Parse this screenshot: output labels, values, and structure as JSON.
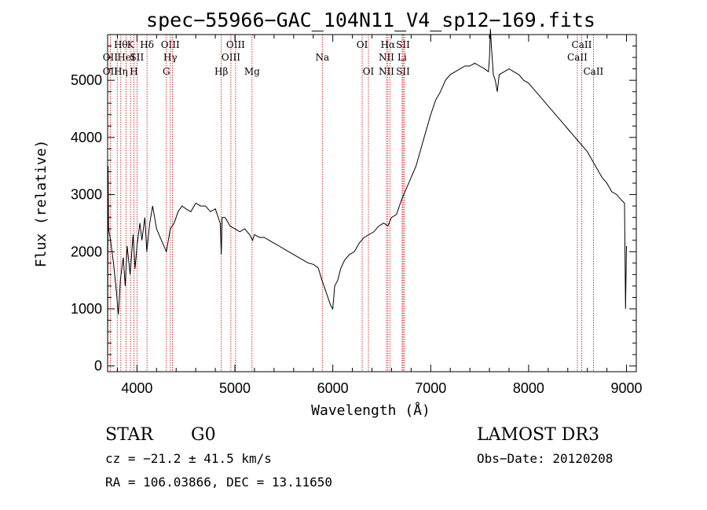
{
  "chart_data": {
    "type": "line",
    "title": "spec−55966−GAC_104N11_V4_sp12−169.fits",
    "xlabel": "Wavelength (Å)",
    "ylabel": "Flux (relative)",
    "xlim": [
      3700,
      9100
    ],
    "ylim": [
      -100,
      5800
    ],
    "xticks": [
      4000,
      5000,
      6000,
      7000,
      8000,
      9000
    ],
    "yticks": [
      0,
      1000,
      2000,
      3000,
      4000,
      5000
    ],
    "spectrum": [
      [
        3700,
        0
      ],
      [
        3705,
        3500
      ],
      [
        3710,
        2400
      ],
      [
        3730,
        2200
      ],
      [
        3760,
        1800
      ],
      [
        3790,
        1300
      ],
      [
        3810,
        900
      ],
      [
        3830,
        1500
      ],
      [
        3860,
        1900
      ],
      [
        3880,
        1400
      ],
      [
        3900,
        2100
      ],
      [
        3930,
        1600
      ],
      [
        3960,
        2300
      ],
      [
        3980,
        1700
      ],
      [
        4000,
        2100
      ],
      [
        4030,
        2500
      ],
      [
        4050,
        2200
      ],
      [
        4080,
        2600
      ],
      [
        4100,
        2000
      ],
      [
        4130,
        2500
      ],
      [
        4160,
        2800
      ],
      [
        4200,
        2400
      ],
      [
        4250,
        2200
      ],
      [
        4300,
        2000
      ],
      [
        4340,
        2400
      ],
      [
        4380,
        2500
      ],
      [
        4420,
        2700
      ],
      [
        4460,
        2800
      ],
      [
        4500,
        2750
      ],
      [
        4550,
        2700
      ],
      [
        4600,
        2850
      ],
      [
        4650,
        2800
      ],
      [
        4700,
        2800
      ],
      [
        4750,
        2700
      ],
      [
        4800,
        2750
      ],
      [
        4850,
        2500
      ],
      [
        4861,
        1950
      ],
      [
        4870,
        2600
      ],
      [
        4900,
        2600
      ],
      [
        4950,
        2450
      ],
      [
        5000,
        2400
      ],
      [
        5050,
        2350
      ],
      [
        5100,
        2400
      ],
      [
        5150,
        2300
      ],
      [
        5180,
        2200
      ],
      [
        5200,
        2300
      ],
      [
        5250,
        2250
      ],
      [
        5300,
        2250
      ],
      [
        5350,
        2200
      ],
      [
        5400,
        2150
      ],
      [
        5450,
        2100
      ],
      [
        5500,
        2050
      ],
      [
        5550,
        2000
      ],
      [
        5600,
        1950
      ],
      [
        5650,
        1900
      ],
      [
        5700,
        1850
      ],
      [
        5750,
        1800
      ],
      [
        5800,
        1780
      ],
      [
        5850,
        1720
      ],
      [
        5890,
        1500
      ],
      [
        5920,
        1350
      ],
      [
        5950,
        1200
      ],
      [
        5980,
        1050
      ],
      [
        6000,
        1000
      ],
      [
        6020,
        1400
      ],
      [
        6050,
        1500
      ],
      [
        6080,
        1700
      ],
      [
        6120,
        1850
      ],
      [
        6170,
        1950
      ],
      [
        6220,
        2000
      ],
      [
        6270,
        2150
      ],
      [
        6320,
        2250
      ],
      [
        6370,
        2300
      ],
      [
        6420,
        2350
      ],
      [
        6470,
        2450
      ],
      [
        6520,
        2500
      ],
      [
        6563,
        2450
      ],
      [
        6600,
        2600
      ],
      [
        6650,
        2650
      ],
      [
        6700,
        2900
      ],
      [
        6750,
        3100
      ],
      [
        6800,
        3300
      ],
      [
        6850,
        3500
      ],
      [
        6900,
        3800
      ],
      [
        6950,
        4100
      ],
      [
        7000,
        4400
      ],
      [
        7050,
        4650
      ],
      [
        7100,
        4800
      ],
      [
        7150,
        5000
      ],
      [
        7200,
        5100
      ],
      [
        7250,
        5150
      ],
      [
        7300,
        5200
      ],
      [
        7350,
        5250
      ],
      [
        7400,
        5250
      ],
      [
        7450,
        5300
      ],
      [
        7500,
        5250
      ],
      [
        7550,
        5200
      ],
      [
        7590,
        5150
      ],
      [
        7600,
        5400
      ],
      [
        7610,
        5900
      ],
      [
        7620,
        5600
      ],
      [
        7640,
        5100
      ],
      [
        7660,
        5000
      ],
      [
        7680,
        4800
      ],
      [
        7700,
        5100
      ],
      [
        7750,
        5150
      ],
      [
        7800,
        5200
      ],
      [
        7850,
        5150
      ],
      [
        7900,
        5100
      ],
      [
        7950,
        5000
      ],
      [
        8000,
        4950
      ],
      [
        8050,
        4850
      ],
      [
        8100,
        4750
      ],
      [
        8150,
        4650
      ],
      [
        8200,
        4550
      ],
      [
        8250,
        4450
      ],
      [
        8300,
        4350
      ],
      [
        8350,
        4250
      ],
      [
        8400,
        4150
      ],
      [
        8450,
        4050
      ],
      [
        8500,
        3950
      ],
      [
        8550,
        3850
      ],
      [
        8600,
        3750
      ],
      [
        8650,
        3600
      ],
      [
        8700,
        3450
      ],
      [
        8750,
        3300
      ],
      [
        8800,
        3200
      ],
      [
        8850,
        3050
      ],
      [
        8900,
        3000
      ],
      [
        8950,
        2900
      ],
      [
        8980,
        2850
      ],
      [
        8990,
        1000
      ],
      [
        9000,
        2100
      ]
    ],
    "lines": [
      {
        "wl": 3727,
        "labels": [
          {
            "text": "OII",
            "row": 2
          },
          {
            "text": "OII",
            "row": 3
          }
        ]
      },
      {
        "wl": 3798,
        "labels": []
      },
      {
        "wl": 3835,
        "labels": [
          {
            "text": "Hθ",
            "row": 1
          },
          {
            "text": "Hη",
            "row": 3
          }
        ]
      },
      {
        "wl": 3889,
        "labels": [
          {
            "text": "HeI",
            "row": 2
          }
        ]
      },
      {
        "wl": 3934,
        "labels": [
          {
            "text": "K",
            "row": 1
          }
        ]
      },
      {
        "wl": 3969,
        "labels": [
          {
            "text": "H",
            "row": 3
          }
        ]
      },
      {
        "wl": 4000,
        "labels": [
          {
            "text": "SII",
            "row": 2
          }
        ]
      },
      {
        "wl": 4102,
        "labels": [
          {
            "text": "Hδ",
            "row": 1
          }
        ]
      },
      {
        "wl": 4300,
        "labels": [
          {
            "text": "G",
            "row": 3
          }
        ]
      },
      {
        "wl": 4340,
        "labels": [
          {
            "text": "OIII",
            "row": 1
          },
          {
            "text": "Hγ",
            "row": 2
          }
        ]
      },
      {
        "wl": 4363,
        "labels": []
      },
      {
        "wl": 4861,
        "labels": [
          {
            "text": "Hβ",
            "row": 3
          }
        ]
      },
      {
        "wl": 4959,
        "labels": [
          {
            "text": "OIII",
            "row": 2
          }
        ]
      },
      {
        "wl": 5007,
        "labels": [
          {
            "text": "OIII",
            "row": 1
          }
        ]
      },
      {
        "wl": 5175,
        "labels": [
          {
            "text": "Mg",
            "row": 3
          }
        ]
      },
      {
        "wl": 5893,
        "labels": [
          {
            "text": "Na",
            "row": 2
          }
        ]
      },
      {
        "wl": 6300,
        "labels": [
          {
            "text": "OI",
            "row": 1
          }
        ]
      },
      {
        "wl": 6364,
        "labels": [
          {
            "text": "OI",
            "row": 3
          }
        ]
      },
      {
        "wl": 6548,
        "labels": [
          {
            "text": "NII",
            "row": 2
          },
          {
            "text": "NII",
            "row": 3
          }
        ]
      },
      {
        "wl": 6563,
        "labels": [
          {
            "text": "Hα",
            "row": 1
          }
        ]
      },
      {
        "wl": 6583,
        "labels": []
      },
      {
        "wl": 6708,
        "labels": [
          {
            "text": "Li",
            "row": 2
          }
        ]
      },
      {
        "wl": 6717,
        "labels": [
          {
            "text": "SII",
            "row": 1
          },
          {
            "text": "SII",
            "row": 3
          }
        ]
      },
      {
        "wl": 6731,
        "labels": []
      },
      {
        "wl": 8498,
        "labels": [
          {
            "text": "CaII",
            "row": 2
          }
        ]
      },
      {
        "wl": 8542,
        "labels": [
          {
            "text": "CaII",
            "row": 1
          }
        ]
      },
      {
        "wl": 8662,
        "labels": [
          {
            "text": "CaII",
            "row": 3
          }
        ]
      }
    ]
  },
  "info": {
    "class": "STAR",
    "subclass": "G0",
    "survey": "LAMOST DR3",
    "redshift": "cz = −21.2 ± 41.5 km/s",
    "obs_date": "Obs−Date: 20120208",
    "coords": "RA = 106.03866, DEC =  13.11650"
  },
  "colors": {
    "spectrum": "#000000",
    "line_marker": "#cc0000"
  }
}
